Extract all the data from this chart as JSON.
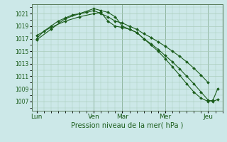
{
  "bg_color": "#cce8e8",
  "grid_color": "#aaccbb",
  "line_color": "#1a5c1a",
  "xlabel": "Pression niveau de la mer( hPa )",
  "yticks": [
    1007,
    1009,
    1011,
    1013,
    1015,
    1017,
    1019,
    1021
  ],
  "ylim": [
    1005.5,
    1022.5
  ],
  "xtick_labels": [
    "Lun",
    "Ven",
    "Mar",
    "Mer",
    "Jeu"
  ],
  "xtick_positions": [
    0,
    24,
    36,
    54,
    72
  ],
  "vline_positions": [
    0,
    24,
    36,
    54,
    72
  ],
  "xlim": [
    -2,
    78
  ],
  "series1_x": [
    0,
    3,
    6,
    9,
    12,
    15,
    18,
    21,
    24,
    27,
    30,
    33,
    36,
    39,
    42,
    45,
    48,
    51,
    54,
    57,
    60,
    63,
    66,
    69,
    72
  ],
  "series1_y": [
    1017.0,
    1018.2,
    1019.0,
    1019.8,
    1020.3,
    1020.8,
    1021.0,
    1021.2,
    1021.5,
    1021.0,
    1020.5,
    1019.8,
    1019.5,
    1019.0,
    1018.5,
    1017.8,
    1017.2,
    1016.5,
    1015.8,
    1015.0,
    1014.2,
    1013.3,
    1012.3,
    1011.2,
    1010.0
  ],
  "series2_x": [
    0,
    6,
    12,
    18,
    24,
    27,
    30,
    33,
    36,
    39,
    42,
    45,
    48,
    51,
    54,
    57,
    60,
    63,
    66,
    69,
    72,
    74,
    76
  ],
  "series2_y": [
    1016.8,
    1018.5,
    1020.2,
    1021.0,
    1021.8,
    1021.5,
    1021.2,
    1020.5,
    1019.0,
    1018.5,
    1018.0,
    1017.0,
    1016.2,
    1015.3,
    1014.3,
    1013.3,
    1012.2,
    1011.0,
    1009.8,
    1008.5,
    1007.2,
    1007.0,
    1007.3
  ],
  "series3_x": [
    0,
    6,
    12,
    18,
    24,
    27,
    30,
    33,
    36,
    39,
    42,
    45,
    48,
    51,
    54,
    57,
    60,
    63,
    66,
    69,
    72,
    74,
    76
  ],
  "series3_y": [
    1017.5,
    1018.8,
    1019.8,
    1020.5,
    1021.0,
    1021.2,
    1019.8,
    1019.0,
    1018.8,
    1018.5,
    1018.0,
    1017.0,
    1016.0,
    1015.0,
    1013.8,
    1012.5,
    1011.2,
    1009.8,
    1008.5,
    1007.5,
    1007.0,
    1007.2,
    1009.0
  ]
}
